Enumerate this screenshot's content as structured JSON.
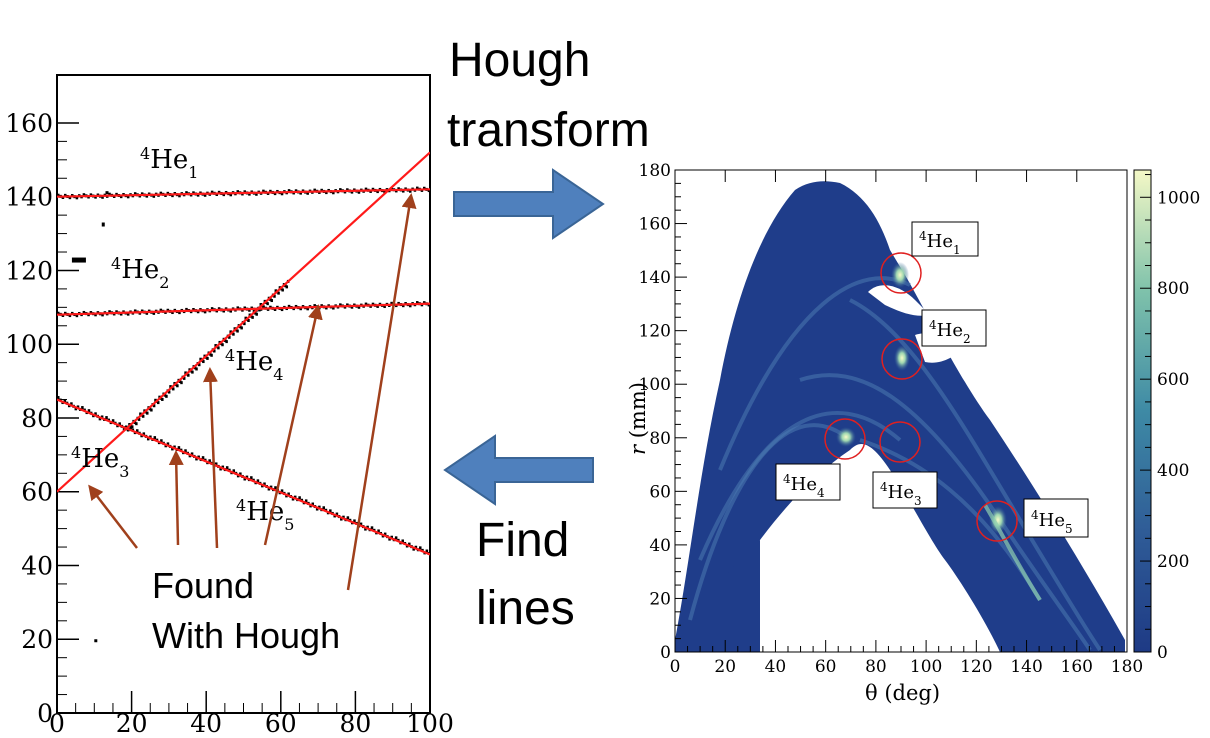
{
  "captions": {
    "hough_line1": "Hough",
    "hough_line2": "transform",
    "find_line1": "Find",
    "find_line2": "lines",
    "found_line1": "Found",
    "found_line2": "With Hough"
  },
  "colors": {
    "arrow_fill": "#4f80bd",
    "arrow_stroke": "#3a6596",
    "fit_line": "#ff1a1a",
    "pointer_arrow": "#a0401c",
    "peak_circle": "#e02020",
    "hist_background": "#1e3a85"
  },
  "left_panel": {
    "x_ticks": [
      "0",
      "20",
      "40",
      "60",
      "80",
      "100"
    ],
    "y_ticks": [
      "0",
      "20",
      "40",
      "60",
      "80",
      "100",
      "120",
      "140",
      "160"
    ],
    "track_labels": [
      {
        "sup": "4",
        "base": "He",
        "sub": "1"
      },
      {
        "sup": "4",
        "base": "He",
        "sub": "2"
      },
      {
        "sup": "4",
        "base": "He",
        "sub": "3"
      },
      {
        "sup": "4",
        "base": "He",
        "sub": "4"
      },
      {
        "sup": "4",
        "base": "He",
        "sub": "5"
      }
    ],
    "fitted_lines": [
      {
        "name": "He1",
        "x": [
          0,
          100
        ],
        "y": [
          140,
          142
        ]
      },
      {
        "name": "He2",
        "x": [
          0,
          100
        ],
        "y": [
          108,
          111
        ]
      },
      {
        "name": "He4",
        "x": [
          0,
          100
        ],
        "y": [
          60,
          152
        ]
      },
      {
        "name": "He5",
        "x": [
          0,
          100
        ],
        "y": [
          85,
          43
        ]
      }
    ]
  },
  "right_panel": {
    "xlabel": "θ (deg)",
    "ylabel_var": "r",
    "ylabel_unit": "(mm)",
    "x_ticks": [
      "0",
      "20",
      "40",
      "60",
      "80",
      "100",
      "120",
      "140",
      "160",
      "180"
    ],
    "y_ticks": [
      "0",
      "20",
      "40",
      "60",
      "80",
      "100",
      "120",
      "140",
      "160",
      "180"
    ],
    "colorbar_ticks": [
      "0",
      "200",
      "400",
      "600",
      "800",
      "1000"
    ],
    "peak_labels": [
      {
        "sup": "4",
        "base": "He",
        "sub": "1"
      },
      {
        "sup": "4",
        "base": "He",
        "sub": "2"
      },
      {
        "sup": "4",
        "base": "He",
        "sub": "3"
      },
      {
        "sup": "4",
        "base": "He",
        "sub": "4"
      },
      {
        "sup": "4",
        "base": "He",
        "sub": "5"
      }
    ]
  }
}
